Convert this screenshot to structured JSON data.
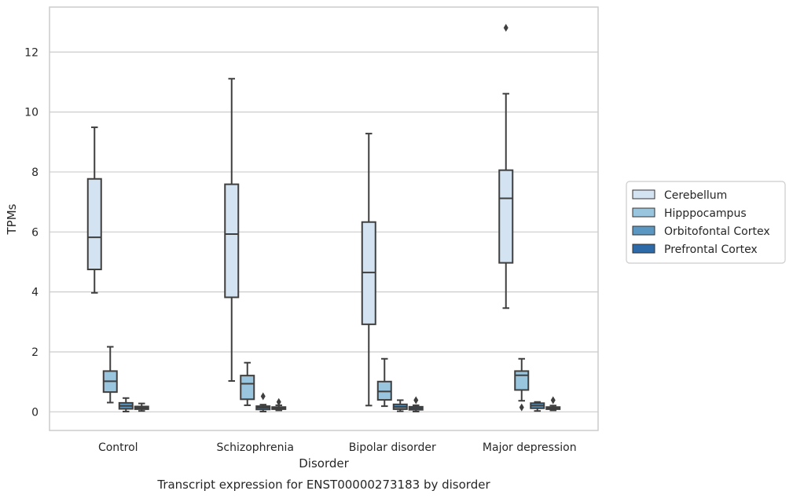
{
  "chart_data": {
    "type": "box",
    "caption": "Transcript expression for ENST00000273183 by disorder",
    "xlabel": "Disorder",
    "ylabel": "TPMs",
    "ylim": [
      -0.62,
      13.5
    ],
    "yticks": [
      0,
      2,
      4,
      6,
      8,
      10,
      12
    ],
    "grid": true,
    "legend_position": "right",
    "categories": [
      "Control",
      "Schizophrenia",
      "Bipolar disorder",
      "Major depression"
    ],
    "series": [
      {
        "name": "Cerebellum",
        "color": "#d4e3f1",
        "boxes": [
          {
            "whislo": 3.97,
            "q1": 4.75,
            "med": 5.82,
            "q3": 7.77,
            "whishi": 9.49,
            "fliers": []
          },
          {
            "whislo": 1.03,
            "q1": 3.82,
            "med": 5.93,
            "q3": 7.59,
            "whishi": 11.11,
            "fliers": []
          },
          {
            "whislo": 0.21,
            "q1": 2.92,
            "med": 4.65,
            "q3": 6.33,
            "whishi": 9.28,
            "fliers": []
          },
          {
            "whislo": 3.46,
            "q1": 4.97,
            "med": 7.12,
            "q3": 8.06,
            "whishi": 10.61,
            "fliers": [
              12.81
            ]
          }
        ]
      },
      {
        "name": "Hipppocampus",
        "color": "#9ac5de",
        "boxes": [
          {
            "whislo": 0.31,
            "q1": 0.66,
            "med": 1.02,
            "q3": 1.36,
            "whishi": 2.17,
            "fliers": []
          },
          {
            "whislo": 0.22,
            "q1": 0.42,
            "med": 0.94,
            "q3": 1.21,
            "whishi": 1.64,
            "fliers": []
          },
          {
            "whislo": 0.19,
            "q1": 0.4,
            "med": 0.68,
            "q3": 1.01,
            "whishi": 1.77,
            "fliers": []
          },
          {
            "whislo": 0.37,
            "q1": 0.73,
            "med": 1.22,
            "q3": 1.36,
            "whishi": 1.77,
            "fliers": [
              0.15
            ]
          }
        ]
      },
      {
        "name": "Orbitofontal Cortex",
        "color": "#5a97c3",
        "boxes": [
          {
            "whislo": 0.01,
            "q1": 0.1,
            "med": 0.2,
            "q3": 0.3,
            "whishi": 0.46,
            "fliers": []
          },
          {
            "whislo": 0.01,
            "q1": 0.08,
            "med": 0.14,
            "q3": 0.19,
            "whishi": 0.24,
            "fliers": [
              0.52
            ]
          },
          {
            "whislo": 0.02,
            "q1": 0.09,
            "med": 0.17,
            "q3": 0.25,
            "whishi": 0.39,
            "fliers": []
          },
          {
            "whislo": 0.03,
            "q1": 0.12,
            "med": 0.21,
            "q3": 0.29,
            "whishi": 0.33,
            "fliers": []
          }
        ]
      },
      {
        "name": "Prefrontal Cortex",
        "color": "#2e6aa7",
        "boxes": [
          {
            "whislo": 0.03,
            "q1": 0.09,
            "med": 0.13,
            "q3": 0.18,
            "whishi": 0.28,
            "fliers": []
          },
          {
            "whislo": 0.05,
            "q1": 0.09,
            "med": 0.12,
            "q3": 0.16,
            "whishi": 0.22,
            "fliers": [
              0.33
            ]
          },
          {
            "whislo": 0.01,
            "q1": 0.07,
            "med": 0.12,
            "q3": 0.17,
            "whishi": 0.22,
            "fliers": [
              0.39
            ]
          },
          {
            "whislo": 0.05,
            "q1": 0.09,
            "med": 0.13,
            "q3": 0.16,
            "whishi": 0.21,
            "fliers": [
              0.39
            ]
          }
        ]
      }
    ]
  }
}
